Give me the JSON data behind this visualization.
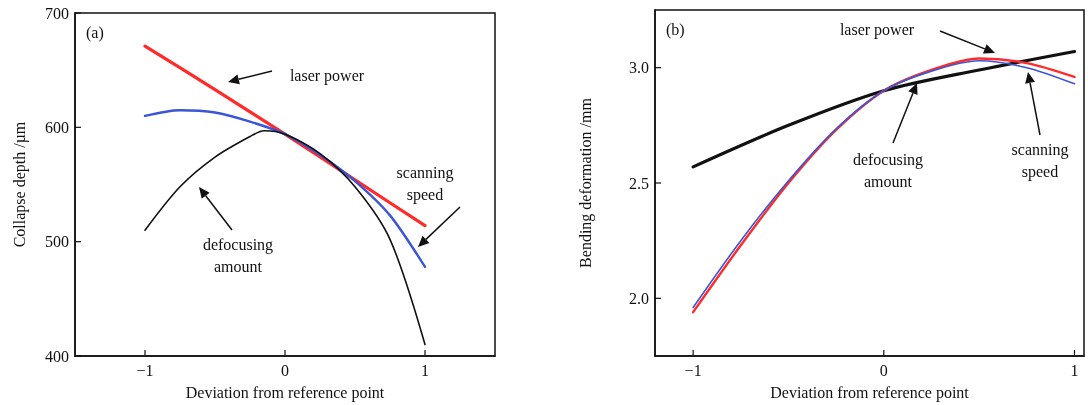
{
  "chart_data": [
    {
      "type": "line",
      "title": "(a)",
      "xlabel": "Deviation from reference point",
      "ylabel": "Collapse depth /µm",
      "xlim": [
        -1.5,
        1.5
      ],
      "xticks": [
        -1,
        0,
        1
      ],
      "ylim": [
        400,
        700
      ],
      "yticks": [
        400,
        500,
        600,
        700
      ],
      "grid": false,
      "marker": "none",
      "line_style": "solid",
      "series": [
        {
          "color": "#ff2a2a",
          "x": [
            -1,
            -0.5,
            0,
            0.5,
            1
          ],
          "values": [
            671,
            633,
            594,
            554,
            514
          ]
        },
        {
          "color": "#3a55d6",
          "x": [
            -1,
            -0.75,
            -0.5,
            -0.25,
            0,
            0.25,
            0.5,
            0.75,
            1
          ],
          "values": [
            610,
            615,
            613,
            605,
            594,
            576,
            553,
            523,
            478
          ]
        },
        {
          "color": "#111111",
          "x": [
            -1,
            -0.75,
            -0.5,
            -0.25,
            -0.15,
            0,
            0.25,
            0.5,
            0.75,
            1
          ],
          "values": [
            510,
            548,
            574,
            592,
            597,
            594,
            577,
            548,
            502,
            410
          ]
        }
      ],
      "annotations": [
        "laser power",
        "defocusing\namount",
        "scanning\nspeed"
      ]
    },
    {
      "type": "line",
      "title": "(b)",
      "xlabel": "Deviation from reference point",
      "ylabel": "Bending deformation /mm",
      "xlim": [
        -1.2,
        1.05
      ],
      "xticks": [
        -1,
        0,
        1
      ],
      "ylim": [
        1.75,
        3.25
      ],
      "yticks": [
        {
          "value": 2,
          "label": "2.0"
        },
        2.5,
        {
          "value": 3,
          "label": "3.0"
        }
      ],
      "grid": false,
      "marker": "none",
      "line_style": "solid",
      "series": [
        {
          "color": "#111111",
          "x": [
            -1,
            -0.5,
            0,
            0.5,
            1
          ],
          "values": [
            2.57,
            2.75,
            2.9,
            2.99,
            3.07
          ]
        },
        {
          "color": "#ff2a2a",
          "x": [
            -1,
            -0.75,
            -0.5,
            -0.25,
            0,
            0.25,
            0.5,
            0.75,
            1
          ],
          "values": [
            1.94,
            2.23,
            2.5,
            2.73,
            2.9,
            2.99,
            3.04,
            3.02,
            2.96
          ]
        },
        {
          "color": "#3a55d6",
          "x": [
            -1,
            -0.75,
            -0.5,
            -0.25,
            0,
            0.25,
            0.5,
            0.75,
            1
          ],
          "values": [
            1.96,
            2.25,
            2.51,
            2.735,
            2.9,
            2.985,
            3.03,
            3.0,
            2.93
          ]
        }
      ],
      "annotations": [
        "laser power",
        "defocusing\namount",
        "scanning\nspeed"
      ]
    }
  ]
}
